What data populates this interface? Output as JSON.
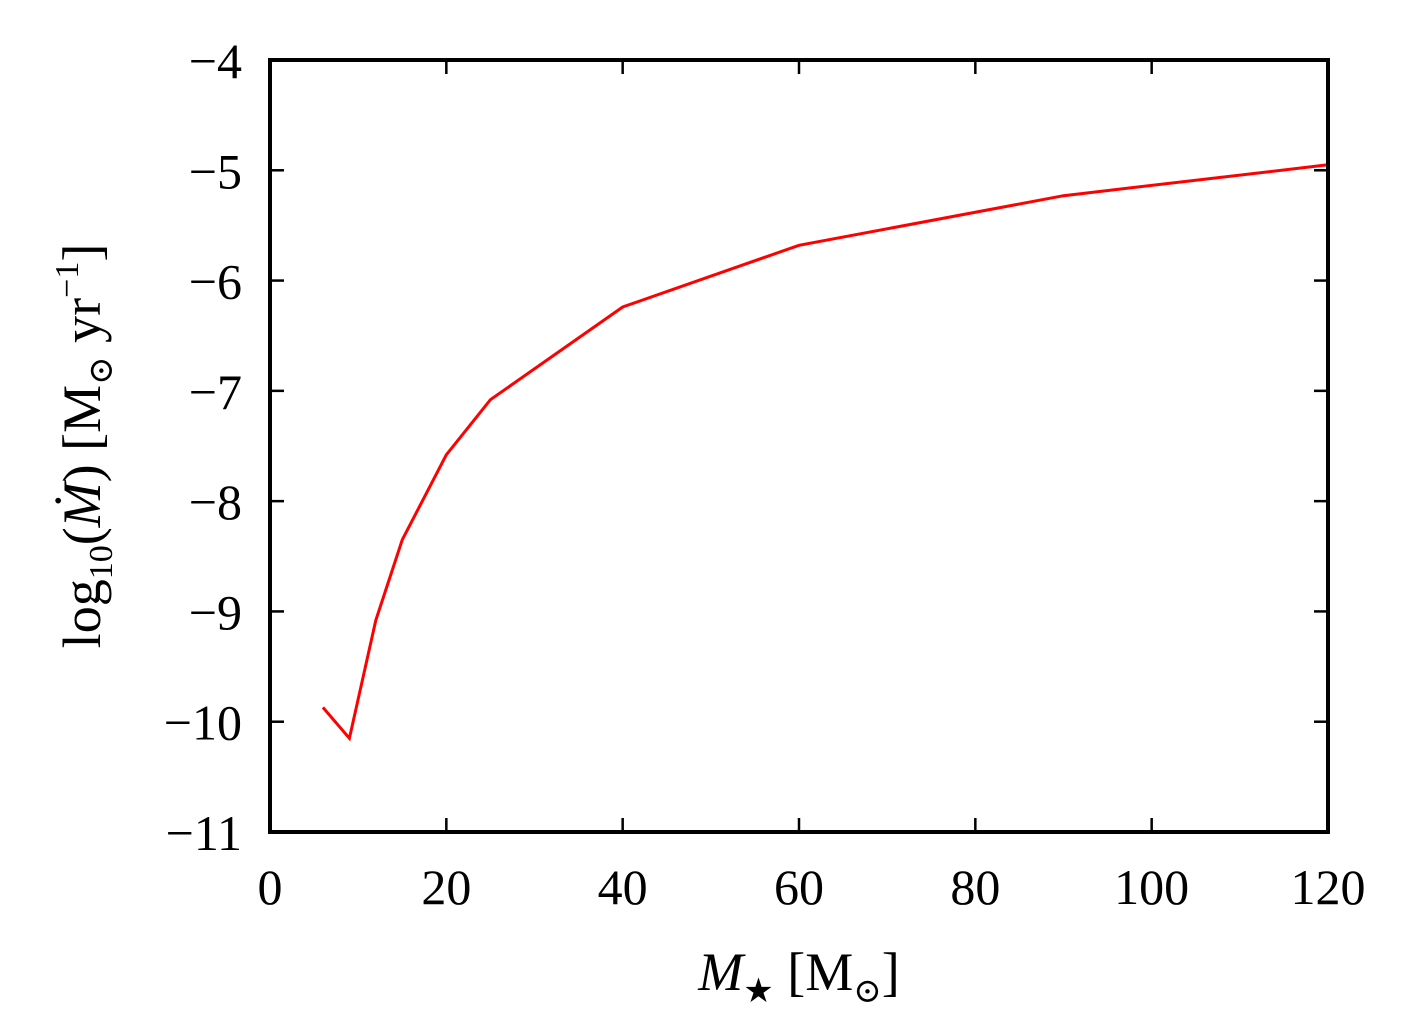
{
  "chart_data": {
    "type": "line",
    "xlabel": "M★ [M⊙]",
    "ylabel": "log10(Ṁ) [M⊙ yr−1]",
    "xlim": [
      0,
      120
    ],
    "ylim": [
      -11,
      -4
    ],
    "xticks": [
      0,
      20,
      40,
      60,
      80,
      100,
      120
    ],
    "yticks": [
      -11,
      -10,
      -9,
      -8,
      -7,
      -6,
      -5,
      -4
    ],
    "xtick_labels": [
      "0",
      "20",
      "40",
      "60",
      "80",
      "100",
      "120"
    ],
    "ytick_labels": [
      "−11",
      "−10",
      "−9",
      "−8",
      "−7",
      "−6",
      "−5",
      "−4"
    ],
    "grid": false,
    "series": [
      {
        "color": "#ff0000",
        "x": [
          6,
          9,
          12,
          15,
          20,
          25,
          40,
          60,
          90,
          120
        ],
        "y": [
          -9.87,
          -10.15,
          -9.08,
          -8.35,
          -7.58,
          -7.08,
          -6.24,
          -5.68,
          -5.23,
          -4.95
        ]
      }
    ]
  }
}
